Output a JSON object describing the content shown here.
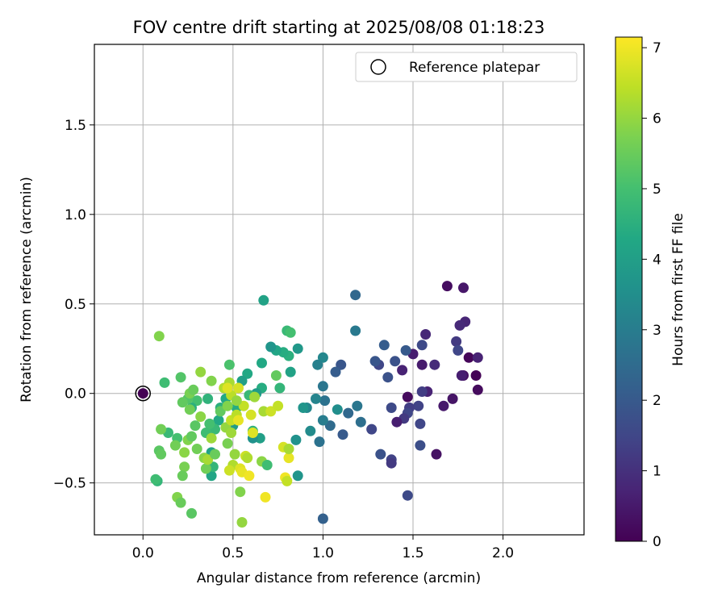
{
  "chart_data": {
    "type": "scatter",
    "title": "FOV centre drift starting at 2025/08/08 01:18:23",
    "xlabel": "Angular distance from reference (arcmin)",
    "ylabel": "Rotation from reference (arcmin)",
    "xlim": [
      -0.27,
      2.45
    ],
    "ylim": [
      -0.79,
      1.95
    ],
    "xticks": [
      {
        "value": 0.0,
        "label": "0.0"
      },
      {
        "value": 0.5,
        "label": "0.5"
      },
      {
        "value": 1.0,
        "label": "1.0"
      },
      {
        "value": 1.5,
        "label": "1.5"
      },
      {
        "value": 2.0,
        "label": "2.0"
      }
    ],
    "yticks": [
      {
        "value": -0.5,
        "label": "−0.5"
      },
      {
        "value": 0.0,
        "label": "0.0"
      },
      {
        "value": 0.5,
        "label": "0.5"
      },
      {
        "value": 1.0,
        "label": "1.0"
      },
      {
        "value": 1.5,
        "label": "1.5"
      }
    ],
    "grid": true,
    "legend": {
      "position": "top-right",
      "label": "Reference platepar"
    },
    "reference_point": {
      "x": 0.0,
      "y": 0.0
    },
    "colorbar": {
      "label": "Hours from first FF file",
      "range": [
        0,
        7.15
      ],
      "ticks": [
        {
          "value": 0,
          "label": "0"
        },
        {
          "value": 1,
          "label": "1"
        },
        {
          "value": 2,
          "label": "2"
        },
        {
          "value": 3,
          "label": "3"
        },
        {
          "value": 4,
          "label": "4"
        },
        {
          "value": 5,
          "label": "5"
        },
        {
          "value": 6,
          "label": "6"
        },
        {
          "value": 7,
          "label": "7"
        }
      ],
      "colormap": "viridis"
    },
    "points": [
      {
        "x": 0.0,
        "y": 0.0,
        "t": 0.0
      },
      {
        "x": 1.69,
        "y": 0.6,
        "t": 0.25
      },
      {
        "x": 1.78,
        "y": 0.59,
        "t": 0.45
      },
      {
        "x": 1.78,
        "y": 0.1,
        "t": 0.3
      },
      {
        "x": 1.81,
        "y": 0.2,
        "t": 0.1
      },
      {
        "x": 1.85,
        "y": 0.1,
        "t": 0.05
      },
      {
        "x": 1.86,
        "y": 0.02,
        "t": 0.2
      },
      {
        "x": 1.86,
        "y": 0.2,
        "t": 0.7
      },
      {
        "x": 1.79,
        "y": 0.4,
        "t": 0.75
      },
      {
        "x": 1.76,
        "y": 0.38,
        "t": 0.85
      },
      {
        "x": 1.74,
        "y": 0.29,
        "t": 1.2
      },
      {
        "x": 1.75,
        "y": 0.24,
        "t": 1.5
      },
      {
        "x": 1.77,
        "y": 0.1,
        "t": 0.6
      },
      {
        "x": 1.72,
        "y": -0.03,
        "t": 0.4
      },
      {
        "x": 1.67,
        "y": -0.07,
        "t": 0.5
      },
      {
        "x": 1.63,
        "y": -0.34,
        "t": 0.35
      },
      {
        "x": 1.62,
        "y": 0.16,
        "t": 0.9
      },
      {
        "x": 1.58,
        "y": 0.01,
        "t": 0.7
      },
      {
        "x": 1.55,
        "y": 0.01,
        "t": 1.3
      },
      {
        "x": 1.57,
        "y": 0.33,
        "t": 0.8
      },
      {
        "x": 1.55,
        "y": 0.27,
        "t": 1.6
      },
      {
        "x": 1.55,
        "y": 0.16,
        "t": 0.55
      },
      {
        "x": 1.53,
        "y": -0.07,
        "t": 1.4
      },
      {
        "x": 1.54,
        "y": -0.17,
        "t": 1.5
      },
      {
        "x": 1.54,
        "y": -0.29,
        "t": 1.7
      },
      {
        "x": 1.5,
        "y": 0.22,
        "t": 0.6
      },
      {
        "x": 1.47,
        "y": -0.02,
        "t": 0.2
      },
      {
        "x": 1.48,
        "y": -0.08,
        "t": 1.3
      },
      {
        "x": 1.47,
        "y": -0.11,
        "t": 1.5
      },
      {
        "x": 1.45,
        "y": -0.14,
        "t": 1.2
      },
      {
        "x": 1.46,
        "y": 0.24,
        "t": 2.0
      },
      {
        "x": 1.44,
        "y": 0.13,
        "t": 0.7
      },
      {
        "x": 1.41,
        "y": -0.16,
        "t": 0.6
      },
      {
        "x": 1.4,
        "y": 0.18,
        "t": 1.8
      },
      {
        "x": 1.38,
        "y": -0.37,
        "t": 1.4
      },
      {
        "x": 1.38,
        "y": -0.39,
        "t": 1.2
      },
      {
        "x": 1.38,
        "y": -0.08,
        "t": 1.6
      },
      {
        "x": 1.36,
        "y": 0.09,
        "t": 1.8
      },
      {
        "x": 1.34,
        "y": 0.27,
        "t": 2.1
      },
      {
        "x": 1.32,
        "y": -0.34,
        "t": 1.8
      },
      {
        "x": 1.31,
        "y": 0.16,
        "t": 1.5
      },
      {
        "x": 1.29,
        "y": 0.18,
        "t": 1.9
      },
      {
        "x": 1.27,
        "y": -0.2,
        "t": 1.5
      },
      {
        "x": 1.47,
        "y": -0.57,
        "t": 1.6
      },
      {
        "x": 1.18,
        "y": 0.55,
        "t": 2.4
      },
      {
        "x": 1.18,
        "y": 0.35,
        "t": 2.9
      },
      {
        "x": 1.21,
        "y": -0.16,
        "t": 2.6
      },
      {
        "x": 1.19,
        "y": -0.07,
        "t": 2.8
      },
      {
        "x": 1.14,
        "y": -0.11,
        "t": 2.4
      },
      {
        "x": 1.11,
        "y": -0.23,
        "t": 2.0
      },
      {
        "x": 1.1,
        "y": 0.16,
        "t": 1.9
      },
      {
        "x": 1.07,
        "y": 0.12,
        "t": 2.1
      },
      {
        "x": 1.04,
        "y": -0.18,
        "t": 2.5
      },
      {
        "x": 1.01,
        "y": -0.04,
        "t": 2.7
      },
      {
        "x": 1.0,
        "y": -0.15,
        "t": 3.0
      },
      {
        "x": 1.0,
        "y": -0.7,
        "t": 2.2
      },
      {
        "x": 1.0,
        "y": 0.04,
        "t": 2.8
      },
      {
        "x": 1.0,
        "y": 0.2,
        "t": 3.3
      },
      {
        "x": 0.98,
        "y": -0.27,
        "t": 2.7
      },
      {
        "x": 0.97,
        "y": 0.16,
        "t": 3.1
      },
      {
        "x": 0.96,
        "y": -0.03,
        "t": 3.2
      },
      {
        "x": 0.93,
        "y": -0.21,
        "t": 3.4
      },
      {
        "x": 0.91,
        "y": -0.08,
        "t": 3.3
      },
      {
        "x": 0.89,
        "y": -0.08,
        "t": 3.7
      },
      {
        "x": 1.08,
        "y": -0.09,
        "t": 3.5
      },
      {
        "x": 0.86,
        "y": 0.25,
        "t": 3.8
      },
      {
        "x": 0.85,
        "y": -0.26,
        "t": 3.6
      },
      {
        "x": 0.86,
        "y": -0.46,
        "t": 3.7
      },
      {
        "x": 0.82,
        "y": 0.12,
        "t": 4.1
      },
      {
        "x": 0.81,
        "y": 0.21,
        "t": 4.5
      },
      {
        "x": 0.8,
        "y": 0.35,
        "t": 4.8
      },
      {
        "x": 0.82,
        "y": 0.34,
        "t": 5.0
      },
      {
        "x": 0.78,
        "y": 0.23,
        "t": 4.4
      },
      {
        "x": 0.76,
        "y": 0.03,
        "t": 4.7
      },
      {
        "x": 0.74,
        "y": 0.24,
        "t": 4.2
      },
      {
        "x": 0.71,
        "y": 0.26,
        "t": 3.7
      },
      {
        "x": 0.67,
        "y": 0.52,
        "t": 4.1
      },
      {
        "x": 0.66,
        "y": 0.17,
        "t": 4.3
      },
      {
        "x": 0.66,
        "y": 0.03,
        "t": 4.4
      },
      {
        "x": 0.65,
        "y": -0.25,
        "t": 4.0
      },
      {
        "x": 0.61,
        "y": -0.25,
        "t": 3.6
      },
      {
        "x": 0.63,
        "y": 0.0,
        "t": 3.9
      },
      {
        "x": 0.61,
        "y": -0.21,
        "t": 4.6
      },
      {
        "x": 0.59,
        "y": -0.01,
        "t": 4.8
      },
      {
        "x": 0.58,
        "y": 0.11,
        "t": 4.3
      },
      {
        "x": 0.55,
        "y": 0.07,
        "t": 4.0
      },
      {
        "x": 0.52,
        "y": -0.08,
        "t": 4.4
      },
      {
        "x": 0.5,
        "y": -0.18,
        "t": 3.9
      },
      {
        "x": 0.46,
        "y": -0.03,
        "t": 4.3
      },
      {
        "x": 0.48,
        "y": 0.16,
        "t": 5.1
      },
      {
        "x": 0.43,
        "y": -0.08,
        "t": 4.5
      },
      {
        "x": 0.42,
        "y": -0.15,
        "t": 4.3
      },
      {
        "x": 0.38,
        "y": -0.33,
        "t": 4.1
      },
      {
        "x": 0.38,
        "y": -0.46,
        "t": 4.2
      },
      {
        "x": 0.39,
        "y": -0.41,
        "t": 4.7
      },
      {
        "x": 0.4,
        "y": -0.2,
        "t": 4.8
      },
      {
        "x": 0.37,
        "y": -0.17,
        "t": 5.0
      },
      {
        "x": 0.35,
        "y": -0.22,
        "t": 4.9
      },
      {
        "x": 0.36,
        "y": -0.03,
        "t": 4.6
      },
      {
        "x": 0.3,
        "y": -0.04,
        "t": 5.0
      },
      {
        "x": 0.27,
        "y": -0.08,
        "t": 4.5
      },
      {
        "x": 0.25,
        "y": -0.03,
        "t": 5.2
      },
      {
        "x": 0.22,
        "y": -0.05,
        "t": 5.4
      },
      {
        "x": 0.21,
        "y": 0.09,
        "t": 5.2
      },
      {
        "x": 0.12,
        "y": 0.06,
        "t": 4.9
      },
      {
        "x": 0.14,
        "y": -0.22,
        "t": 4.8
      },
      {
        "x": 0.19,
        "y": -0.25,
        "t": 5.0
      },
      {
        "x": 0.08,
        "y": -0.49,
        "t": 4.7
      },
      {
        "x": 0.07,
        "y": -0.48,
        "t": 4.9
      },
      {
        "x": 0.09,
        "y": -0.32,
        "t": 5.3
      },
      {
        "x": 0.1,
        "y": -0.34,
        "t": 5.4
      },
      {
        "x": 0.09,
        "y": 0.32,
        "t": 5.8
      },
      {
        "x": 0.1,
        "y": -0.2,
        "t": 5.6
      },
      {
        "x": 0.18,
        "y": -0.29,
        "t": 5.6
      },
      {
        "x": 0.19,
        "y": -0.58,
        "t": 5.8
      },
      {
        "x": 0.21,
        "y": -0.61,
        "t": 5.5
      },
      {
        "x": 0.27,
        "y": -0.67,
        "t": 5.3
      },
      {
        "x": 0.23,
        "y": -0.41,
        "t": 5.7
      },
      {
        "x": 0.22,
        "y": -0.46,
        "t": 5.5
      },
      {
        "x": 0.23,
        "y": -0.33,
        "t": 5.9
      },
      {
        "x": 0.25,
        "y": -0.26,
        "t": 5.8
      },
      {
        "x": 0.27,
        "y": -0.24,
        "t": 5.4
      },
      {
        "x": 0.26,
        "y": -0.09,
        "t": 5.6
      },
      {
        "x": 0.26,
        "y": 0.0,
        "t": 5.7
      },
      {
        "x": 0.28,
        "y": 0.02,
        "t": 5.5
      },
      {
        "x": 0.29,
        "y": -0.18,
        "t": 5.3
      },
      {
        "x": 0.3,
        "y": -0.31,
        "t": 5.6
      },
      {
        "x": 0.32,
        "y": -0.13,
        "t": 5.9
      },
      {
        "x": 0.32,
        "y": 0.12,
        "t": 6.0
      },
      {
        "x": 0.34,
        "y": -0.36,
        "t": 5.9
      },
      {
        "x": 0.35,
        "y": -0.42,
        "t": 5.6
      },
      {
        "x": 0.36,
        "y": -0.37,
        "t": 6.2
      },
      {
        "x": 0.38,
        "y": -0.25,
        "t": 6.1
      },
      {
        "x": 0.38,
        "y": 0.07,
        "t": 5.8
      },
      {
        "x": 0.4,
        "y": -0.34,
        "t": 5.5
      },
      {
        "x": 0.43,
        "y": -0.1,
        "t": 5.4
      },
      {
        "x": 0.45,
        "y": 0.03,
        "t": 6.3
      },
      {
        "x": 0.46,
        "y": -0.19,
        "t": 6.0
      },
      {
        "x": 0.47,
        "y": -0.28,
        "t": 5.7
      },
      {
        "x": 0.47,
        "y": -0.07,
        "t": 5.8
      },
      {
        "x": 0.48,
        "y": 0.06,
        "t": 6.2
      },
      {
        "x": 0.49,
        "y": -0.01,
        "t": 6.4
      },
      {
        "x": 0.49,
        "y": -0.15,
        "t": 6.5
      },
      {
        "x": 0.49,
        "y": -0.22,
        "t": 6.1
      },
      {
        "x": 0.5,
        "y": -0.4,
        "t": 6.3
      },
      {
        "x": 0.48,
        "y": -0.43,
        "t": 6.6
      },
      {
        "x": 0.51,
        "y": -0.34,
        "t": 6.0
      },
      {
        "x": 0.52,
        "y": -0.12,
        "t": 6.4
      },
      {
        "x": 0.53,
        "y": 0.03,
        "t": 6.7
      },
      {
        "x": 0.54,
        "y": -0.42,
        "t": 6.8
      },
      {
        "x": 0.54,
        "y": -0.55,
        "t": 5.8
      },
      {
        "x": 0.55,
        "y": -0.72,
        "t": 6.0
      },
      {
        "x": 0.55,
        "y": -0.44,
        "t": 6.9
      },
      {
        "x": 0.56,
        "y": -0.07,
        "t": 6.5
      },
      {
        "x": 0.57,
        "y": -0.35,
        "t": 6.6
      },
      {
        "x": 0.58,
        "y": -0.36,
        "t": 6.3
      },
      {
        "x": 0.59,
        "y": -0.46,
        "t": 7.0
      },
      {
        "x": 0.6,
        "y": -0.12,
        "t": 6.7
      },
      {
        "x": 0.61,
        "y": -0.22,
        "t": 6.8
      },
      {
        "x": 0.62,
        "y": -0.02,
        "t": 6.1
      },
      {
        "x": 0.68,
        "y": -0.58,
        "t": 7.0
      },
      {
        "x": 0.66,
        "y": -0.38,
        "t": 5.9
      },
      {
        "x": 0.67,
        "y": -0.1,
        "t": 6.2
      },
      {
        "x": 0.69,
        "y": -0.4,
        "t": 4.9
      },
      {
        "x": 0.71,
        "y": -0.1,
        "t": 6.6
      },
      {
        "x": 0.74,
        "y": 0.1,
        "t": 5.4
      },
      {
        "x": 0.75,
        "y": -0.07,
        "t": 6.5
      },
      {
        "x": 0.78,
        "y": -0.3,
        "t": 6.7
      },
      {
        "x": 0.79,
        "y": -0.47,
        "t": 7.0
      },
      {
        "x": 0.8,
        "y": -0.49,
        "t": 6.5
      },
      {
        "x": 0.81,
        "y": -0.36,
        "t": 6.9
      },
      {
        "x": 0.81,
        "y": -0.31,
        "t": 6.2
      },
      {
        "x": 0.47,
        "y": 0.03,
        "t": 6.8
      },
      {
        "x": 0.52,
        "y": -0.04,
        "t": 6.0
      },
      {
        "x": 0.53,
        "y": -0.15,
        "t": 6.9
      }
    ]
  }
}
